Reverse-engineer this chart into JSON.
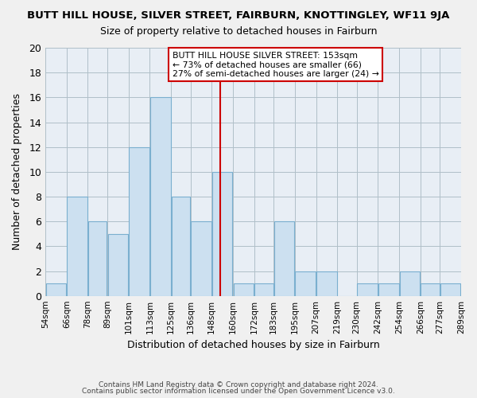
{
  "title": "BUTT HILL HOUSE, SILVER STREET, FAIRBURN, KNOTTINGLEY, WF11 9JA",
  "subtitle": "Size of property relative to detached houses in Fairburn",
  "xlabel": "Distribution of detached houses by size in Fairburn",
  "ylabel": "Number of detached properties",
  "footer_line1": "Contains HM Land Registry data © Crown copyright and database right 2024.",
  "footer_line2": "Contains public sector information licensed under the Open Government Licence v3.0.",
  "bin_edges": [
    54,
    66,
    78,
    89,
    101,
    113,
    125,
    136,
    148,
    160,
    172,
    183,
    195,
    207,
    219,
    230,
    242,
    254,
    266,
    277,
    289
  ],
  "bin_labels": [
    "54sqm",
    "66sqm",
    "78sqm",
    "89sqm",
    "101sqm",
    "113sqm",
    "125sqm",
    "136sqm",
    "148sqm",
    "160sqm",
    "172sqm",
    "183sqm",
    "195sqm",
    "207sqm",
    "219sqm",
    "230sqm",
    "242sqm",
    "254sqm",
    "266sqm",
    "277sqm",
    "289sqm"
  ],
  "counts": [
    1,
    8,
    6,
    5,
    12,
    16,
    8,
    6,
    10,
    1,
    1,
    6,
    2,
    2,
    0,
    1,
    1,
    2,
    1,
    1
  ],
  "bar_color": "#cce0f0",
  "bar_edge_color": "#7aafcf",
  "reference_line_x": 153,
  "reference_line_color": "#cc0000",
  "annotation_box_text_line1": "BUTT HILL HOUSE SILVER STREET: 153sqm",
  "annotation_box_text_line2": "← 73% of detached houses are smaller (66)",
  "annotation_box_text_line3": "27% of semi-detached houses are larger (24) →",
  "ylim": [
    0,
    20
  ],
  "background_color": "#f0f0f0",
  "plot_background_color": "#e8eef5",
  "grid_color": "#b0bfc8"
}
